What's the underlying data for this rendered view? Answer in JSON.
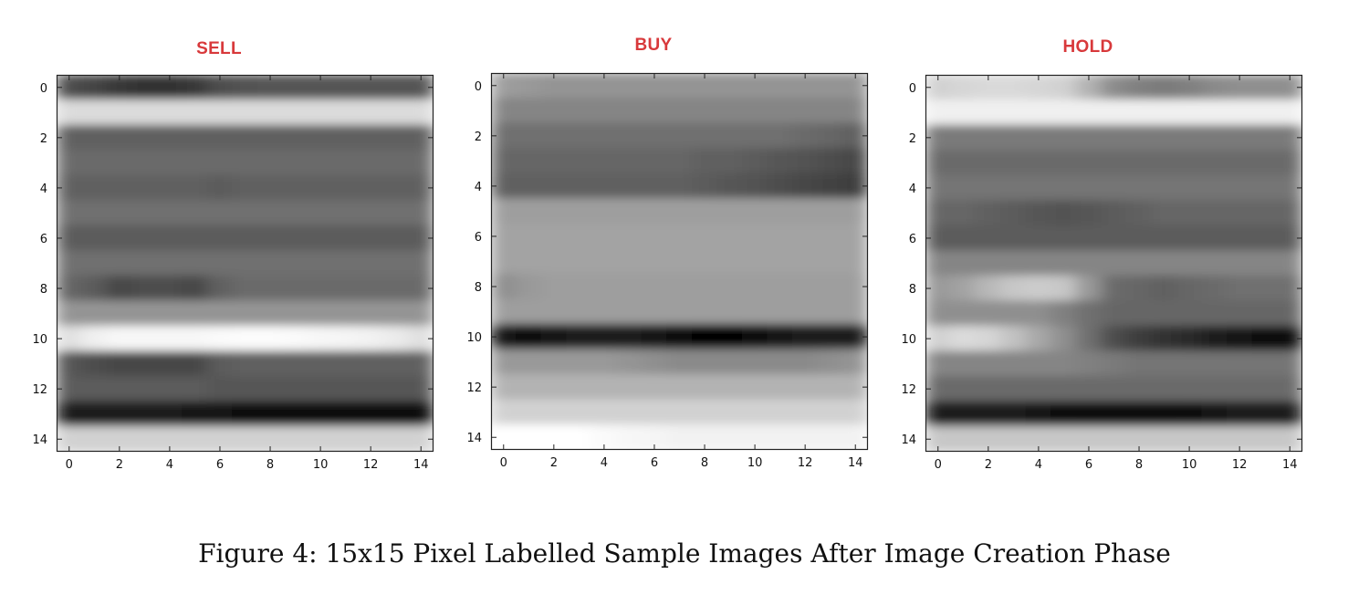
{
  "chart_data": [
    {
      "type": "heatmap",
      "title": "SELL",
      "title_color": "#d8393b",
      "colormap": "gray",
      "xticks": [
        0,
        2,
        4,
        6,
        8,
        10,
        12,
        14
      ],
      "yticks": [
        0,
        2,
        4,
        6,
        8,
        10,
        12,
        14
      ],
      "xlim": [
        -0.5,
        14.5
      ],
      "ylim": [
        14.5,
        -0.5
      ],
      "rows": [
        [
          0.3,
          0.27,
          0.22,
          0.2,
          0.2,
          0.22,
          0.3,
          0.32,
          0.33,
          0.33,
          0.33,
          0.33,
          0.33,
          0.33,
          0.33
        ],
        [
          0.86,
          0.86,
          0.86,
          0.86,
          0.86,
          0.86,
          0.86,
          0.86,
          0.86,
          0.86,
          0.86,
          0.86,
          0.86,
          0.86,
          0.86
        ],
        [
          0.38,
          0.38,
          0.38,
          0.38,
          0.38,
          0.38,
          0.38,
          0.38,
          0.38,
          0.38,
          0.38,
          0.38,
          0.38,
          0.38,
          0.38
        ],
        [
          0.42,
          0.42,
          0.42,
          0.42,
          0.42,
          0.42,
          0.42,
          0.42,
          0.42,
          0.42,
          0.42,
          0.42,
          0.42,
          0.42,
          0.42
        ],
        [
          0.38,
          0.38,
          0.38,
          0.38,
          0.38,
          0.38,
          0.36,
          0.38,
          0.38,
          0.38,
          0.38,
          0.38,
          0.38,
          0.38,
          0.38
        ],
        [
          0.44,
          0.44,
          0.44,
          0.44,
          0.44,
          0.44,
          0.44,
          0.44,
          0.44,
          0.44,
          0.44,
          0.44,
          0.44,
          0.44,
          0.44
        ],
        [
          0.36,
          0.36,
          0.36,
          0.36,
          0.36,
          0.36,
          0.36,
          0.36,
          0.36,
          0.36,
          0.36,
          0.36,
          0.36,
          0.36,
          0.36
        ],
        [
          0.44,
          0.44,
          0.44,
          0.44,
          0.44,
          0.44,
          0.44,
          0.44,
          0.44,
          0.44,
          0.44,
          0.44,
          0.44,
          0.44,
          0.44
        ],
        [
          0.4,
          0.36,
          0.28,
          0.3,
          0.3,
          0.28,
          0.38,
          0.42,
          0.42,
          0.42,
          0.42,
          0.42,
          0.42,
          0.42,
          0.42
        ],
        [
          0.58,
          0.58,
          0.58,
          0.58,
          0.58,
          0.58,
          0.58,
          0.58,
          0.58,
          0.58,
          0.58,
          0.58,
          0.58,
          0.58,
          0.58
        ],
        [
          0.88,
          0.94,
          0.97,
          0.97,
          0.97,
          0.97,
          0.98,
          0.99,
          0.99,
          0.98,
          0.97,
          0.96,
          0.95,
          0.92,
          0.88
        ],
        [
          0.34,
          0.3,
          0.28,
          0.28,
          0.28,
          0.28,
          0.36,
          0.38,
          0.38,
          0.38,
          0.38,
          0.38,
          0.38,
          0.38,
          0.38
        ],
        [
          0.36,
          0.36,
          0.36,
          0.36,
          0.36,
          0.36,
          0.34,
          0.34,
          0.34,
          0.34,
          0.34,
          0.34,
          0.34,
          0.34,
          0.34
        ],
        [
          0.1,
          0.1,
          0.1,
          0.1,
          0.1,
          0.08,
          0.07,
          0.06,
          0.06,
          0.05,
          0.04,
          0.03,
          0.03,
          0.03,
          0.04
        ],
        [
          0.82,
          0.82,
          0.82,
          0.82,
          0.82,
          0.82,
          0.82,
          0.82,
          0.82,
          0.82,
          0.82,
          0.82,
          0.82,
          0.82,
          0.82
        ]
      ]
    },
    {
      "type": "heatmap",
      "title": "BUY",
      "title_color": "#d8393b",
      "colormap": "gray",
      "xticks": [
        0,
        2,
        4,
        6,
        8,
        10,
        12,
        14
      ],
      "yticks": [
        0,
        2,
        4,
        6,
        8,
        10,
        12,
        14
      ],
      "xlim": [
        -0.5,
        14.5
      ],
      "ylim": [
        14.5,
        -0.5
      ],
      "rows": [
        [
          0.62,
          0.6,
          0.58,
          0.58,
          0.58,
          0.58,
          0.58,
          0.58,
          0.58,
          0.58,
          0.58,
          0.58,
          0.58,
          0.58,
          0.58
        ],
        [
          0.52,
          0.52,
          0.52,
          0.52,
          0.52,
          0.52,
          0.52,
          0.52,
          0.52,
          0.52,
          0.52,
          0.52,
          0.52,
          0.52,
          0.52
        ],
        [
          0.44,
          0.44,
          0.44,
          0.44,
          0.44,
          0.44,
          0.44,
          0.44,
          0.44,
          0.44,
          0.44,
          0.44,
          0.42,
          0.4,
          0.38
        ],
        [
          0.4,
          0.4,
          0.4,
          0.4,
          0.4,
          0.4,
          0.4,
          0.4,
          0.38,
          0.38,
          0.36,
          0.34,
          0.32,
          0.3,
          0.28
        ],
        [
          0.38,
          0.38,
          0.38,
          0.38,
          0.38,
          0.38,
          0.38,
          0.38,
          0.36,
          0.34,
          0.32,
          0.3,
          0.28,
          0.26,
          0.24
        ],
        [
          0.62,
          0.62,
          0.62,
          0.62,
          0.62,
          0.62,
          0.62,
          0.62,
          0.62,
          0.62,
          0.62,
          0.62,
          0.62,
          0.62,
          0.62
        ],
        [
          0.64,
          0.64,
          0.64,
          0.64,
          0.64,
          0.64,
          0.64,
          0.64,
          0.64,
          0.64,
          0.64,
          0.64,
          0.64,
          0.64,
          0.64
        ],
        [
          0.64,
          0.64,
          0.64,
          0.64,
          0.64,
          0.64,
          0.64,
          0.64,
          0.64,
          0.64,
          0.64,
          0.64,
          0.64,
          0.64,
          0.64
        ],
        [
          0.56,
          0.6,
          0.62,
          0.62,
          0.62,
          0.62,
          0.62,
          0.62,
          0.62,
          0.62,
          0.62,
          0.62,
          0.62,
          0.62,
          0.62
        ],
        [
          0.62,
          0.62,
          0.62,
          0.62,
          0.62,
          0.62,
          0.62,
          0.62,
          0.62,
          0.62,
          0.62,
          0.62,
          0.62,
          0.62,
          0.62
        ],
        [
          0.08,
          0.06,
          0.08,
          0.1,
          0.1,
          0.1,
          0.08,
          0.04,
          0.02,
          0.01,
          0.04,
          0.08,
          0.1,
          0.1,
          0.1
        ],
        [
          0.6,
          0.6,
          0.6,
          0.6,
          0.6,
          0.58,
          0.56,
          0.54,
          0.54,
          0.54,
          0.54,
          0.54,
          0.54,
          0.56,
          0.58
        ],
        [
          0.7,
          0.7,
          0.7,
          0.7,
          0.7,
          0.7,
          0.7,
          0.7,
          0.7,
          0.7,
          0.7,
          0.7,
          0.7,
          0.7,
          0.7
        ],
        [
          0.82,
          0.82,
          0.82,
          0.82,
          0.82,
          0.82,
          0.82,
          0.82,
          0.82,
          0.82,
          0.82,
          0.82,
          0.82,
          0.82,
          0.82
        ],
        [
          1.0,
          1.0,
          1.0,
          1.0,
          0.98,
          0.97,
          0.96,
          0.95,
          0.95,
          0.95,
          0.95,
          0.95,
          0.95,
          0.95,
          0.95
        ]
      ]
    },
    {
      "type": "heatmap",
      "title": "HOLD",
      "title_color": "#d8393b",
      "colormap": "gray",
      "xticks": [
        0,
        2,
        4,
        6,
        8,
        10,
        12,
        14
      ],
      "yticks": [
        0,
        2,
        4,
        6,
        8,
        10,
        12,
        14
      ],
      "xlim": [
        -0.5,
        14.5
      ],
      "ylim": [
        14.5,
        -0.5
      ],
      "rows": [
        [
          0.82,
          0.84,
          0.85,
          0.85,
          0.84,
          0.82,
          0.7,
          0.55,
          0.5,
          0.48,
          0.5,
          0.54,
          0.56,
          0.56,
          0.56
        ],
        [
          0.94,
          0.94,
          0.94,
          0.94,
          0.94,
          0.94,
          0.94,
          0.94,
          0.94,
          0.94,
          0.94,
          0.94,
          0.94,
          0.94,
          0.94
        ],
        [
          0.48,
          0.48,
          0.48,
          0.48,
          0.48,
          0.48,
          0.48,
          0.48,
          0.48,
          0.48,
          0.48,
          0.48,
          0.48,
          0.48,
          0.48
        ],
        [
          0.42,
          0.42,
          0.42,
          0.42,
          0.42,
          0.42,
          0.42,
          0.42,
          0.42,
          0.42,
          0.42,
          0.42,
          0.42,
          0.42,
          0.42
        ],
        [
          0.46,
          0.46,
          0.46,
          0.46,
          0.46,
          0.46,
          0.46,
          0.46,
          0.46,
          0.46,
          0.46,
          0.46,
          0.46,
          0.46,
          0.46
        ],
        [
          0.4,
          0.4,
          0.38,
          0.36,
          0.34,
          0.32,
          0.34,
          0.36,
          0.38,
          0.4,
          0.4,
          0.4,
          0.4,
          0.4,
          0.4
        ],
        [
          0.36,
          0.36,
          0.36,
          0.36,
          0.36,
          0.36,
          0.36,
          0.36,
          0.36,
          0.36,
          0.36,
          0.36,
          0.36,
          0.36,
          0.36
        ],
        [
          0.52,
          0.52,
          0.52,
          0.52,
          0.52,
          0.52,
          0.52,
          0.52,
          0.52,
          0.52,
          0.52,
          0.52,
          0.52,
          0.52,
          0.52
        ],
        [
          0.6,
          0.64,
          0.72,
          0.78,
          0.8,
          0.78,
          0.6,
          0.42,
          0.4,
          0.38,
          0.4,
          0.42,
          0.44,
          0.44,
          0.44
        ],
        [
          0.56,
          0.56,
          0.56,
          0.56,
          0.56,
          0.5,
          0.44,
          0.4,
          0.4,
          0.4,
          0.4,
          0.4,
          0.4,
          0.4,
          0.4
        ],
        [
          0.82,
          0.86,
          0.84,
          0.76,
          0.66,
          0.56,
          0.44,
          0.3,
          0.24,
          0.2,
          0.16,
          0.12,
          0.08,
          0.06,
          0.06
        ],
        [
          0.52,
          0.52,
          0.52,
          0.52,
          0.52,
          0.52,
          0.5,
          0.48,
          0.46,
          0.46,
          0.46,
          0.46,
          0.46,
          0.46,
          0.46
        ],
        [
          0.42,
          0.42,
          0.42,
          0.42,
          0.42,
          0.42,
          0.42,
          0.42,
          0.42,
          0.42,
          0.42,
          0.42,
          0.42,
          0.42,
          0.42
        ],
        [
          0.1,
          0.1,
          0.1,
          0.1,
          0.08,
          0.06,
          0.04,
          0.04,
          0.04,
          0.04,
          0.06,
          0.08,
          0.1,
          0.1,
          0.1
        ],
        [
          0.78,
          0.78,
          0.78,
          0.78,
          0.78,
          0.78,
          0.78,
          0.78,
          0.78,
          0.78,
          0.78,
          0.78,
          0.78,
          0.78,
          0.78
        ]
      ]
    }
  ],
  "caption": {
    "label": "Figure 4:",
    "text": "15x15 Pixel Labelled Sample Images After Image Creation Phase"
  }
}
